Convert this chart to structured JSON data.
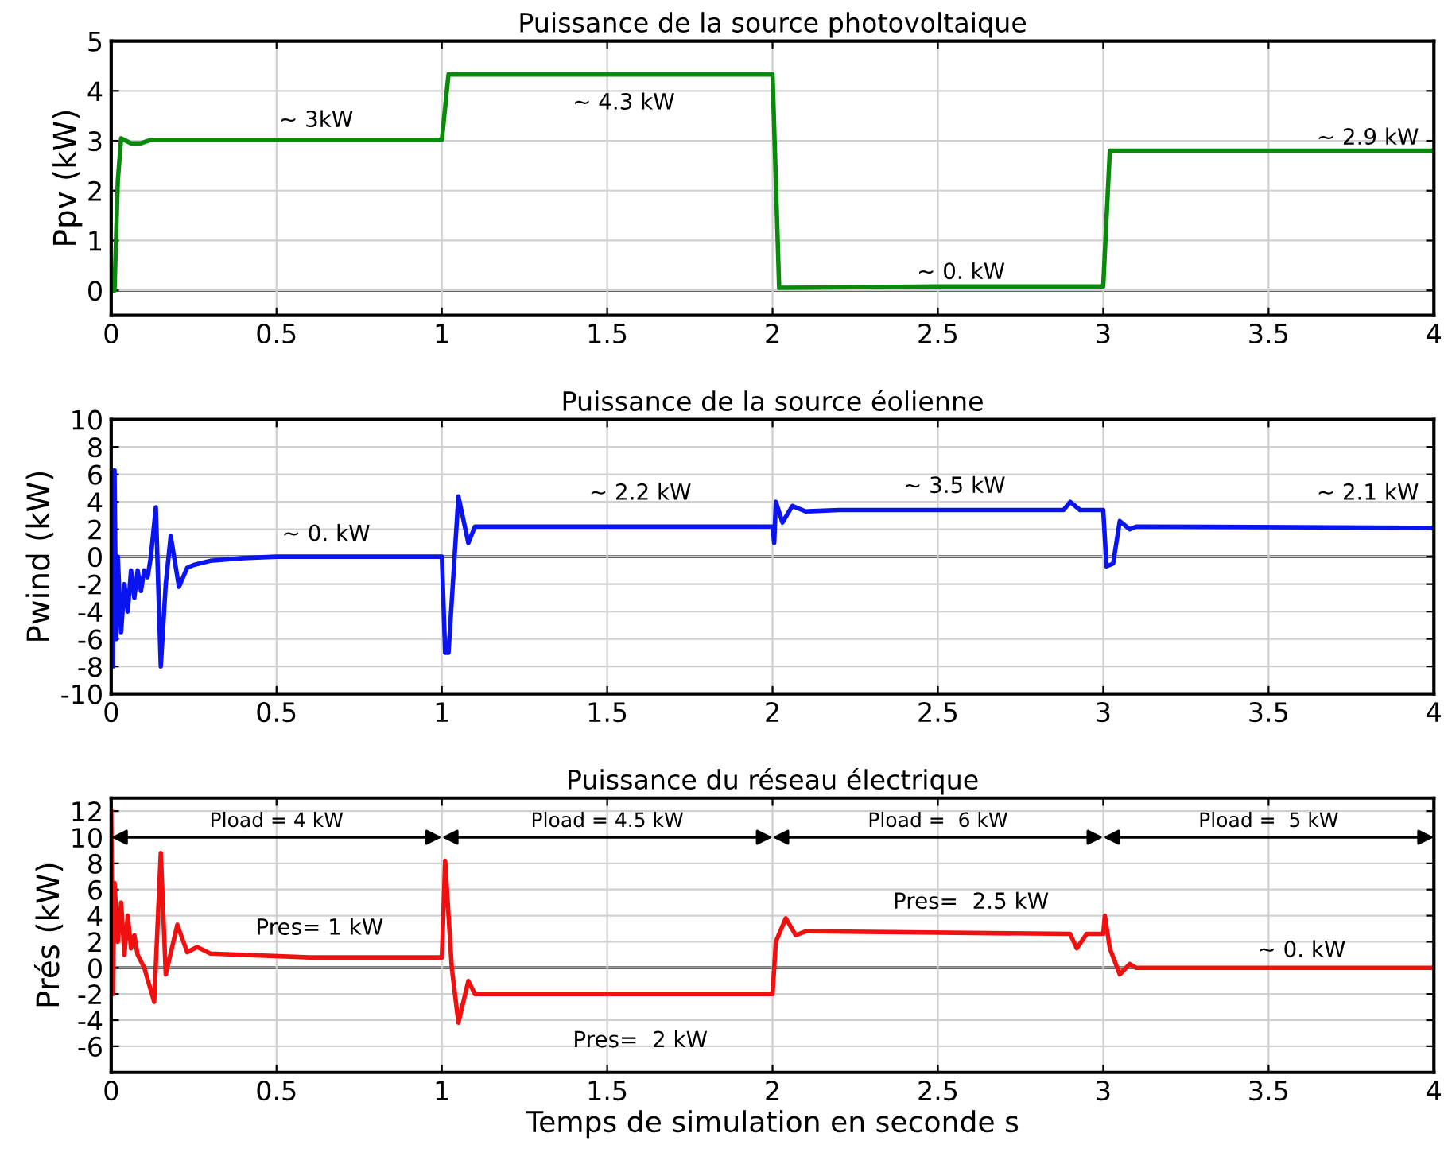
{
  "chart_data": [
    {
      "type": "line",
      "title": "Puissance de la source photovoltaique",
      "ylabel": "Ppv (kW)",
      "xlim": [
        0,
        4
      ],
      "xticks": [
        0,
        0.5,
        1,
        1.5,
        2,
        2.5,
        3,
        3.5,
        4
      ],
      "ylim": [
        -0.5,
        5
      ],
      "yticks": [
        0,
        1,
        2,
        3,
        4,
        5
      ],
      "grid": true,
      "series": [
        {
          "color": "#0a8a0a",
          "x": [
            0,
            0.01,
            0.02,
            0.03,
            0.06,
            0.09,
            0.12,
            1.0,
            1.02,
            2.0,
            2.02,
            2.5,
            2.98,
            3.0,
            3.02,
            4.0
          ],
          "values": [
            0,
            0,
            2.2,
            3.05,
            2.95,
            2.95,
            3.02,
            3.02,
            4.33,
            4.33,
            0.05,
            0.08,
            0.08,
            0.08,
            2.8,
            2.8
          ]
        }
      ],
      "ref_lines": [
        {
          "axis": "y",
          "value": 0,
          "color": "#000000"
        }
      ],
      "annotations": [
        "~ 3kW",
        "~ 4.3 kW",
        "~ 0. kW",
        "~ 2.9 kW"
      ]
    },
    {
      "type": "line",
      "title": "Puissance de la source éolienne",
      "ylabel": "Pwind (kW)",
      "xlim": [
        0,
        4
      ],
      "xticks": [
        0,
        0.5,
        1,
        1.5,
        2,
        2.5,
        3,
        3.5,
        4
      ],
      "ylim": [
        -10,
        10
      ],
      "yticks": [
        -10,
        -8,
        -6,
        -4,
        -2,
        0,
        2,
        4,
        6,
        8,
        10
      ],
      "grid": true,
      "series": [
        {
          "color": "#0a14f0",
          "x": [
            0,
            0.005,
            0.01,
            0.015,
            0.02,
            0.03,
            0.04,
            0.05,
            0.06,
            0.07,
            0.08,
            0.09,
            0.1,
            0.11,
            0.12,
            0.135,
            0.15,
            0.165,
            0.18,
            0.205,
            0.23,
            0.25,
            0.3,
            0.4,
            0.5,
            1.0,
            1.01,
            1.02,
            1.05,
            1.08,
            1.1,
            2.0,
            2.005,
            2.01,
            2.03,
            2.06,
            2.1,
            2.2,
            2.88,
            2.9,
            2.93,
            3.0,
            3.01,
            3.03,
            3.05,
            3.08,
            3.1,
            4.0
          ],
          "values": [
            -8,
            -8,
            6.3,
            -6,
            0,
            -5.5,
            -2,
            -4,
            -1,
            -3,
            -1,
            -2.5,
            -1,
            -1.5,
            0,
            3.6,
            -8,
            -2,
            1.5,
            -2.2,
            -0.8,
            -0.6,
            -0.3,
            -0.1,
            0,
            0,
            -7,
            -7,
            4.4,
            1,
            2.2,
            2.2,
            1,
            4,
            2.5,
            3.7,
            3.3,
            3.4,
            3.4,
            4,
            3.4,
            3.4,
            -0.7,
            -0.5,
            2.6,
            2,
            2.2,
            2.1
          ]
        }
      ],
      "ref_lines": [
        {
          "axis": "y",
          "value": 0,
          "color": "#000000"
        }
      ],
      "annotations": [
        "~ 0. kW",
        "~ 2.2 kW",
        "~ 3.5 kW",
        "~ 2.1 kW"
      ]
    },
    {
      "type": "line",
      "title": "Puissance du réseau électrique",
      "ylabel": "Prés (kW)",
      "xlabel": "Temps de simulation en seconde s",
      "xlim": [
        0,
        4
      ],
      "xticks": [
        0,
        0.5,
        1,
        1.5,
        2,
        2.5,
        3,
        3.5,
        4
      ],
      "ylim": [
        -8,
        13
      ],
      "yticks": [
        -6,
        -4,
        -2,
        0,
        2,
        4,
        6,
        8,
        10,
        12
      ],
      "grid": true,
      "series": [
        {
          "color": "#f01010",
          "x": [
            0,
            0.005,
            0.01,
            0.02,
            0.03,
            0.04,
            0.05,
            0.06,
            0.07,
            0.08,
            0.1,
            0.13,
            0.15,
            0.165,
            0.2,
            0.23,
            0.26,
            0.3,
            0.6,
            1.0,
            1.01,
            1.03,
            1.05,
            1.08,
            1.1,
            2.0,
            2.01,
            2.04,
            2.07,
            2.1,
            2.9,
            2.92,
            2.95,
            3.0,
            3.005,
            3.02,
            3.05,
            3.08,
            3.1,
            4.0
          ],
          "values": [
            12,
            -2,
            6.5,
            2,
            5,
            1,
            4,
            1.5,
            2.5,
            1,
            0,
            -2.6,
            8.8,
            -0.5,
            3.3,
            1.2,
            1.6,
            1.1,
            0.8,
            0.8,
            8.2,
            0,
            -4.2,
            -1,
            -2,
            -2,
            2,
            3.8,
            2.5,
            2.8,
            2.6,
            1.5,
            2.6,
            2.6,
            4,
            1.5,
            -0.5,
            0.3,
            0,
            0
          ]
        }
      ],
      "ref_lines": [
        {
          "axis": "y",
          "value": 0,
          "color": "#000000"
        }
      ],
      "annotations": [
        "Pload = 4 kW",
        "Pload = 4.5 kW",
        "Pload =  6 kW",
        "Pload =  5 kW",
        "Pres= 1 kW",
        "Pres=  2 kW",
        "Pres=  2.5 kW",
        "~ 0. kW"
      ]
    }
  ]
}
